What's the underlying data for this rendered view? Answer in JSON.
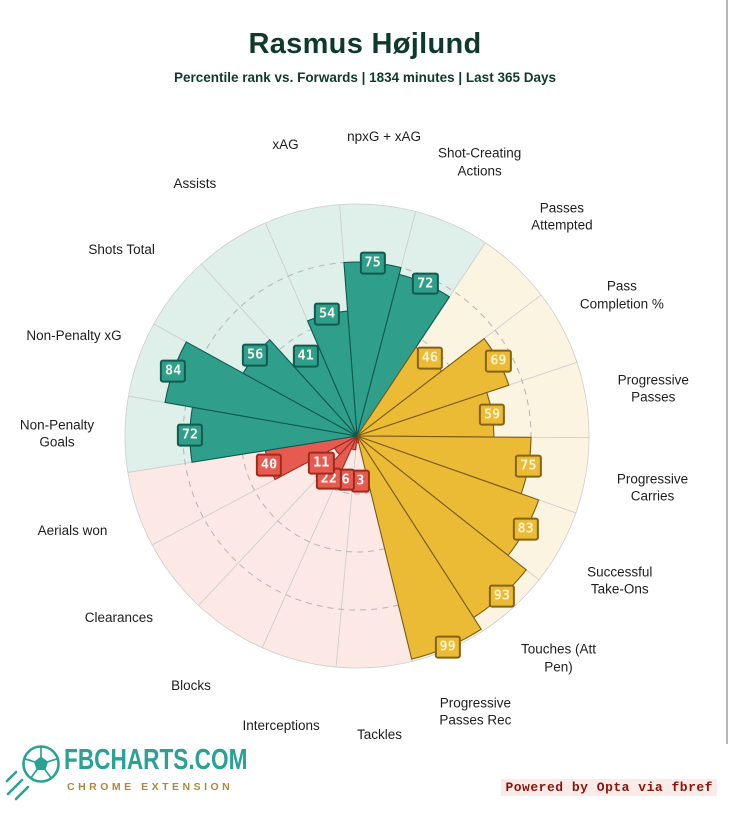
{
  "header": {
    "title": "Rasmus Højlund",
    "subtitle": "Percentile rank vs. Forwards | 1834 minutes | Last 365 Days"
  },
  "chart_data": {
    "type": "pizza",
    "max": 100,
    "rings": [
      25,
      50,
      75
    ],
    "direction": "clockwise",
    "start_angle_deg": -4.3,
    "legend_position": "none",
    "slices": [
      {
        "label": "npxG + xAG",
        "value": 75,
        "group": "attacking"
      },
      {
        "label": "Shot-Creating\nActions",
        "value": 72,
        "group": "attacking"
      },
      {
        "label": "Passes\nAttempted",
        "value": 46,
        "group": "possession"
      },
      {
        "label": "Pass\nCompletion %",
        "value": 69,
        "group": "possession"
      },
      {
        "label": "Progressive\nPasses",
        "value": 59,
        "group": "possession"
      },
      {
        "label": "Progressive\nCarries",
        "value": 75,
        "group": "possession"
      },
      {
        "label": "Successful\nTake-Ons",
        "value": 83,
        "group": "possession"
      },
      {
        "label": "Touches (Att\nPen)",
        "value": 93,
        "group": "possession"
      },
      {
        "label": "Progressive\nPasses Rec",
        "value": 99,
        "group": "possession"
      },
      {
        "label": "Tackles",
        "value": 3,
        "group": "defending"
      },
      {
        "label": "Interceptions",
        "value": 6,
        "group": "defending"
      },
      {
        "label": "Blocks",
        "value": 22,
        "group": "defending"
      },
      {
        "label": "Clearances",
        "value": 11,
        "group": "defending"
      },
      {
        "label": "Aerials won",
        "value": 40,
        "group": "defending"
      },
      {
        "label": "Non-Penalty\nGoals",
        "value": 72,
        "group": "attacking"
      },
      {
        "label": "Non-Penalty xG",
        "value": 84,
        "group": "attacking"
      },
      {
        "label": "Shots Total",
        "value": 56,
        "group": "attacking"
      },
      {
        "label": "Assists",
        "value": 41,
        "group": "attacking"
      },
      {
        "label": "xAG",
        "value": 54,
        "group": "attacking"
      }
    ],
    "groups": {
      "attacking": {
        "color": "#2f9f8c",
        "edge": "#10594d",
        "bg": "#dff0eb",
        "badge_text": "#f6f3e7"
      },
      "possession": {
        "color": "#ecbb35",
        "edge": "#7d5c12",
        "bg": "#fbf4e0",
        "badge_text": "#fdf2cc"
      },
      "defending": {
        "color": "#e65a50",
        "edge": "#a02b20",
        "bg": "#fce9e6",
        "badge_text": "#ffffff"
      }
    }
  },
  "footer": {
    "brand": "FBCHARTS.COM",
    "brand_sub": "CHROME EXTENSION",
    "brand_color": "#29a295",
    "brand_sub_color": "#a98a3e",
    "credit": "Powered by Opta via fbref",
    "credit_color": "#8a140a"
  }
}
